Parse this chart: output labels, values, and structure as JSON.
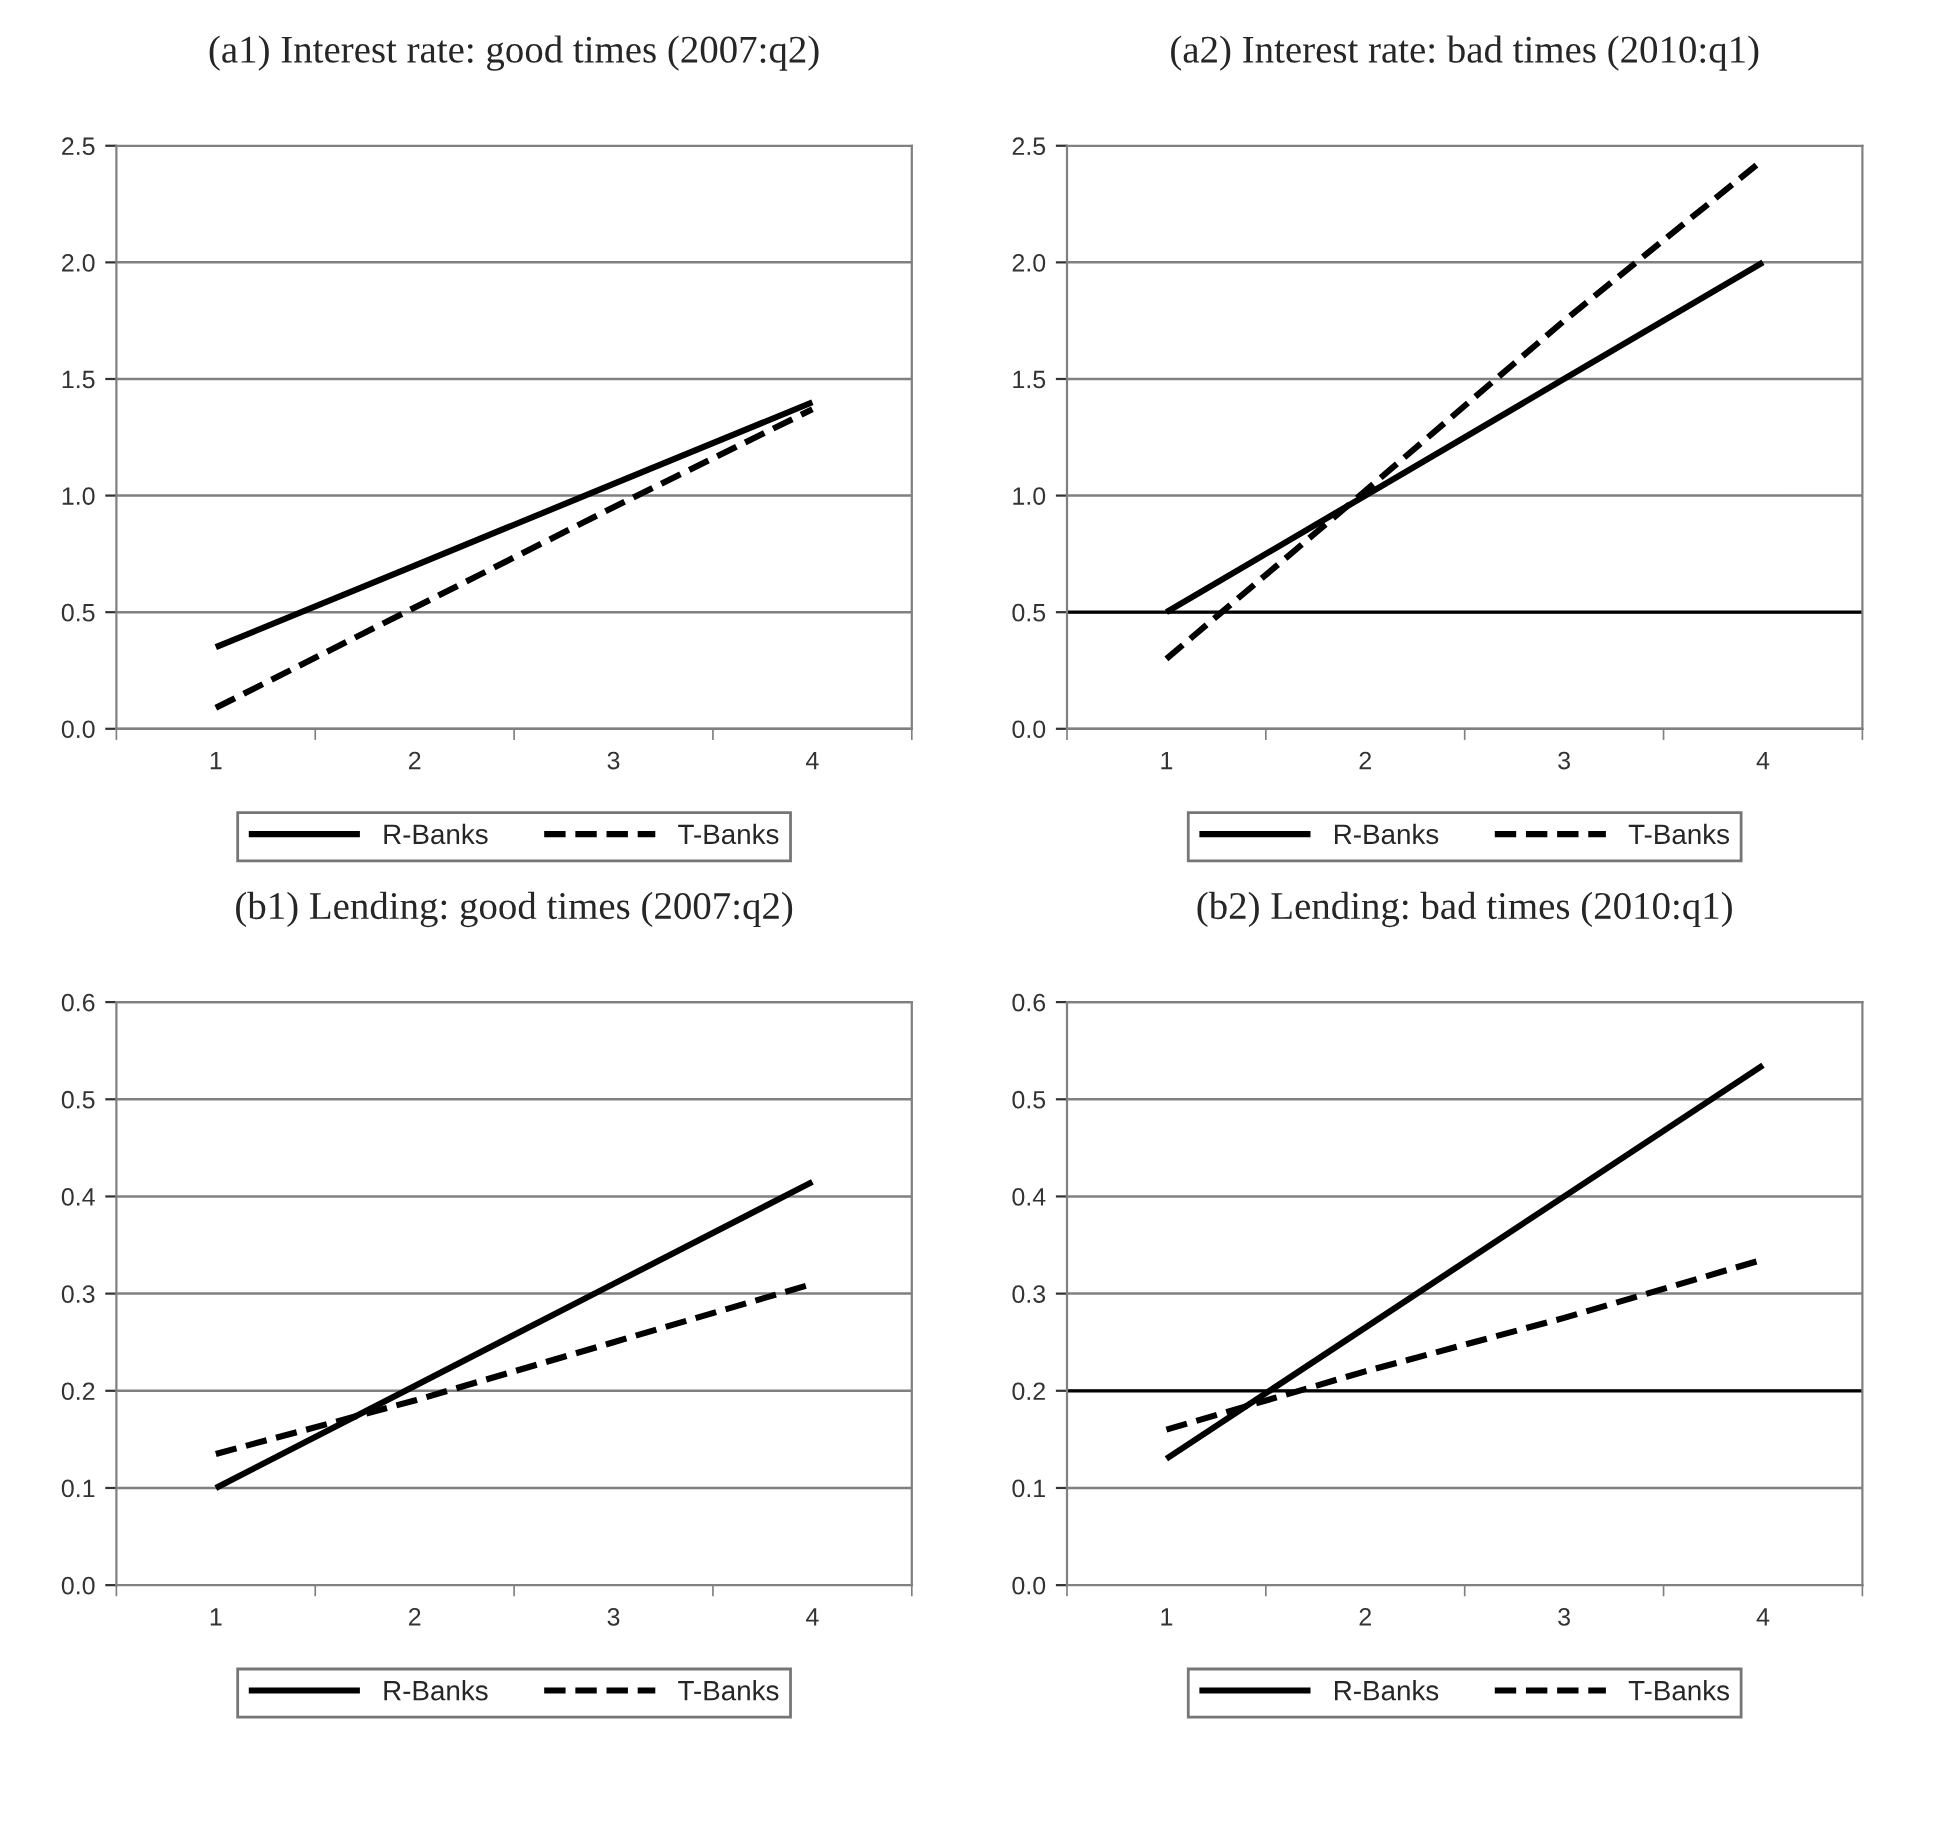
{
  "chart_data": [
    {
      "type": "line",
      "title": "(a1) Interest rate: good times (2007:q2)",
      "categories": [
        "1",
        "2",
        "3",
        "4"
      ],
      "ylim": [
        0,
        2.5
      ],
      "yticks": [
        {
          "value": 0,
          "label": "0.0"
        },
        {
          "value": 0.5,
          "label": "0.5"
        },
        {
          "value": 1,
          "label": "1.0"
        },
        {
          "value": 1.5,
          "label": "1.5"
        },
        {
          "value": 2,
          "label": "2.0"
        },
        {
          "value": 2.5,
          "label": "2.5"
        }
      ],
      "grid": "y",
      "legend": "bottom",
      "marker": "none",
      "series": [
        {
          "name": "R-Banks",
          "color": "#000000",
          "line_style": "solid",
          "values": [
            0.35,
            0.7,
            1.05,
            1.4
          ]
        },
        {
          "name": "T-Banks",
          "color": "#000000",
          "line_style": "dashed",
          "values": [
            0.09,
            0.52,
            0.95,
            1.37
          ]
        }
      ]
    },
    {
      "type": "line",
      "title": "(a2) Interest rate: bad times (2010:q1)",
      "categories": [
        "1",
        "2",
        "3",
        "4"
      ],
      "ylim": [
        0,
        2.5
      ],
      "yticks": [
        {
          "value": 0,
          "label": "0.0"
        },
        {
          "value": 0.5,
          "label": "0.5"
        },
        {
          "value": 1,
          "label": "1.0"
        },
        {
          "value": 1.5,
          "label": "1.5"
        },
        {
          "value": 2,
          "label": "2.0"
        },
        {
          "value": 2.5,
          "label": "2.5"
        }
      ],
      "grid": "y",
      "legend": "bottom",
      "marker": "none",
      "ref_lines": [
        {
          "axis": "y",
          "value": 0.5,
          "color": "#000000"
        }
      ],
      "series": [
        {
          "name": "R-Banks",
          "color": "#000000",
          "line_style": "solid",
          "values": [
            0.5,
            1.0,
            1.5,
            2.0
          ]
        },
        {
          "name": "T-Banks",
          "color": "#000000",
          "line_style": "dashed",
          "values": [
            0.3,
            1.02,
            1.75,
            2.44
          ]
        }
      ]
    },
    {
      "type": "line",
      "title": "(b1) Lending: good times (2007:q2)",
      "categories": [
        "1",
        "2",
        "3",
        "4"
      ],
      "ylim": [
        0,
        0.6
      ],
      "yticks": [
        {
          "value": 0,
          "label": "0.0"
        },
        0.1,
        0.2,
        0.3,
        0.4,
        0.5,
        0.6
      ],
      "grid": "y",
      "legend": "bottom",
      "marker": "none",
      "series": [
        {
          "name": "R-Banks",
          "color": "#000000",
          "line_style": "solid",
          "values": [
            0.1,
            0.205,
            0.31,
            0.415
          ]
        },
        {
          "name": "T-Banks",
          "color": "#000000",
          "line_style": "dashed",
          "values": [
            0.135,
            0.19,
            0.25,
            0.31
          ]
        }
      ]
    },
    {
      "type": "line",
      "title": "(b2) Lending: bad times (2010:q1)",
      "categories": [
        "1",
        "2",
        "3",
        "4"
      ],
      "ylim": [
        0,
        0.6
      ],
      "yticks": [
        {
          "value": 0,
          "label": "0.0"
        },
        0.1,
        0.2,
        0.3,
        0.4,
        0.5,
        0.6
      ],
      "grid": "y",
      "legend": "bottom",
      "marker": "none",
      "ref_lines": [
        {
          "axis": "y",
          "value": 0.2,
          "color": "#000000"
        }
      ],
      "series": [
        {
          "name": "R-Banks",
          "color": "#000000",
          "line_style": "solid",
          "values": [
            0.13,
            0.265,
            0.4,
            0.535
          ]
        },
        {
          "name": "T-Banks",
          "color": "#000000",
          "line_style": "dashed",
          "values": [
            0.16,
            0.22,
            0.275,
            0.335
          ]
        }
      ]
    }
  ]
}
